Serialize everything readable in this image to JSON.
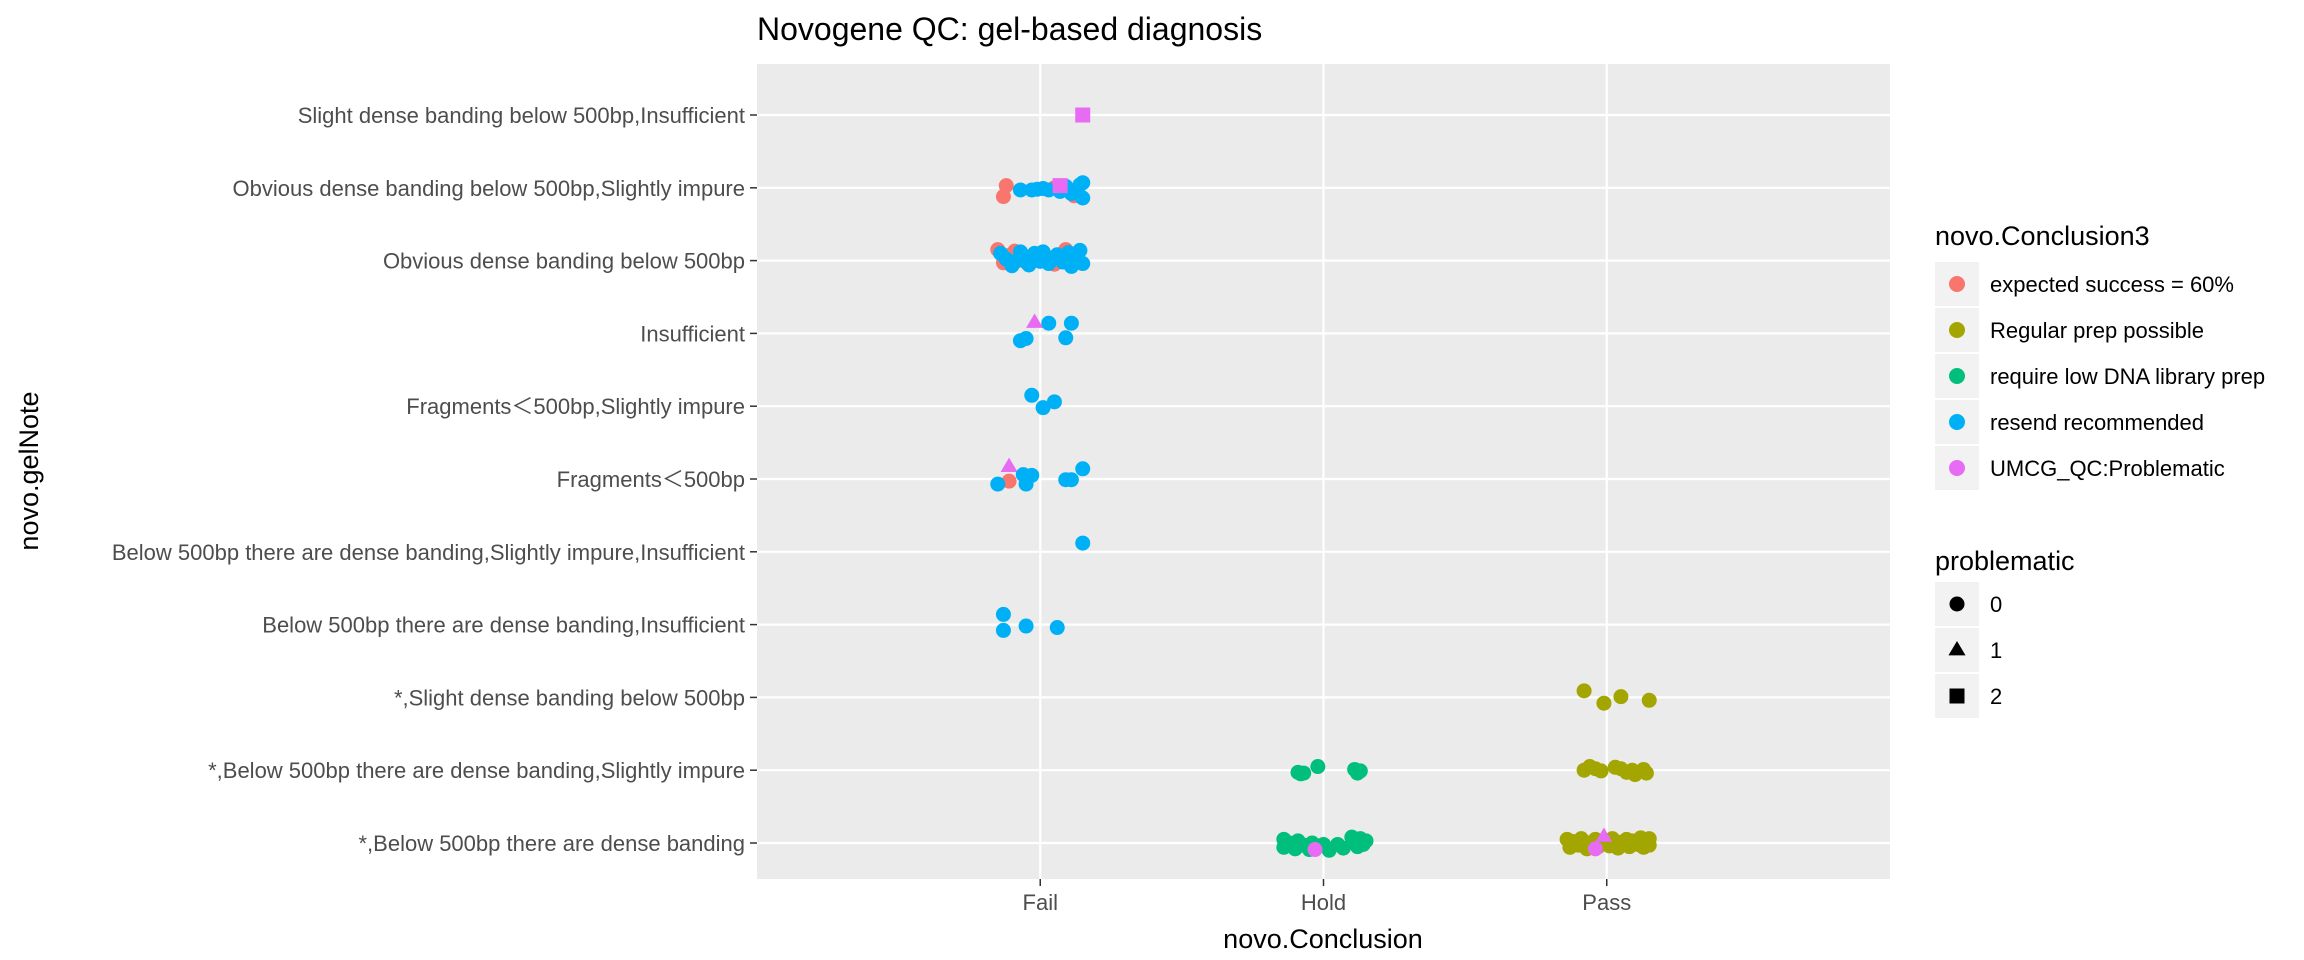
{
  "chart_data": {
    "type": "scatter",
    "title": "Novogene QC: gel-based diagnosis",
    "xlabel": "novo.Conclusion",
    "ylabel": "novo.gelNote",
    "x_categories": [
      "Fail",
      "Hold",
      "Pass"
    ],
    "y_categories": [
      "*,Below 500bp there are dense banding",
      "*,Below 500bp there are dense banding,Slightly impure",
      "*,Slight dense banding below 500bp",
      "Below 500bp there are dense banding,Insufficient",
      "Below 500bp there are dense banding,Slightly impure,Insufficient",
      "Fragments＜500bp",
      "Fragments＜500bp,Slightly impure",
      "Insufficient",
      "Obvious dense banding below 500bp",
      "Obvious dense banding below 500bp,Slightly impure",
      "Slight dense banding below 500bp,Insufficient"
    ],
    "grid": true,
    "color_legend": {
      "title": "novo.Conclusion3",
      "entries": [
        {
          "label": "expected success = 60%",
          "color": "#F8766D"
        },
        {
          "label": "Regular prep possible",
          "color": "#A3A500"
        },
        {
          "label": "require low DNA library prep",
          "color": "#00BF7D"
        },
        {
          "label": "resend recommended",
          "color": "#00B0F6"
        },
        {
          "label": "UMCG_QC:Problematic",
          "color": "#E76BF3"
        }
      ]
    },
    "shape_legend": {
      "title": "problematic",
      "entries": [
        {
          "label": "0",
          "shape": "circle"
        },
        {
          "label": "1",
          "shape": "triangle"
        },
        {
          "label": "2",
          "shape": "square"
        }
      ]
    },
    "points": [
      {
        "x": 0.15,
        "y": 10,
        "c": 4,
        "s": 2
      },
      {
        "x": -0.13,
        "y": 8.88,
        "c": 0,
        "s": 0
      },
      {
        "x": -0.12,
        "y": 9.03,
        "c": 0,
        "s": 0
      },
      {
        "x": 0.05,
        "y": 9.0,
        "c": 0,
        "s": 0
      },
      {
        "x": 0.12,
        "y": 8.89,
        "c": 0,
        "s": 0
      },
      {
        "x": -0.07,
        "y": 8.97,
        "c": 3,
        "s": 0
      },
      {
        "x": -0.03,
        "y": 8.97,
        "c": 3,
        "s": 0
      },
      {
        "x": -0.01,
        "y": 8.98,
        "c": 3,
        "s": 0
      },
      {
        "x": 0.01,
        "y": 8.99,
        "c": 3,
        "s": 0
      },
      {
        "x": 0.03,
        "y": 8.97,
        "c": 3,
        "s": 0
      },
      {
        "x": 0.07,
        "y": 8.95,
        "c": 3,
        "s": 0
      },
      {
        "x": 0.09,
        "y": 9.02,
        "c": 3,
        "s": 0
      },
      {
        "x": 0.11,
        "y": 8.92,
        "c": 3,
        "s": 0
      },
      {
        "x": 0.13,
        "y": 8.97,
        "c": 3,
        "s": 0
      },
      {
        "x": 0.14,
        "y": 9.04,
        "c": 3,
        "s": 0
      },
      {
        "x": 0.15,
        "y": 9.07,
        "c": 3,
        "s": 0
      },
      {
        "x": 0.15,
        "y": 8.86,
        "c": 3,
        "s": 0
      },
      {
        "x": 0.07,
        "y": 9.03,
        "c": 4,
        "s": 2
      },
      {
        "x": -0.15,
        "y": 8.15,
        "c": 0,
        "s": 0
      },
      {
        "x": -0.13,
        "y": 7.97,
        "c": 0,
        "s": 0
      },
      {
        "x": -0.11,
        "y": 8.07,
        "c": 0,
        "s": 0
      },
      {
        "x": -0.09,
        "y": 8.13,
        "c": 0,
        "s": 0
      },
      {
        "x": -0.05,
        "y": 7.98,
        "c": 0,
        "s": 0
      },
      {
        "x": 0.02,
        "y": 8.06,
        "c": 0,
        "s": 0
      },
      {
        "x": 0.04,
        "y": 8.0,
        "c": 0,
        "s": 0
      },
      {
        "x": 0.05,
        "y": 7.95,
        "c": 0,
        "s": 0
      },
      {
        "x": 0.09,
        "y": 8.15,
        "c": 0,
        "s": 0
      },
      {
        "x": 0.12,
        "y": 8.05,
        "c": 0,
        "s": 0
      },
      {
        "x": -0.14,
        "y": 8.1,
        "c": 3,
        "s": 0
      },
      {
        "x": -0.12,
        "y": 8.02,
        "c": 3,
        "s": 0
      },
      {
        "x": -0.1,
        "y": 7.93,
        "c": 3,
        "s": 0
      },
      {
        "x": -0.08,
        "y": 8.0,
        "c": 3,
        "s": 0
      },
      {
        "x": -0.07,
        "y": 8.12,
        "c": 3,
        "s": 0
      },
      {
        "x": -0.05,
        "y": 8.05,
        "c": 3,
        "s": 0
      },
      {
        "x": -0.04,
        "y": 7.94,
        "c": 3,
        "s": 0
      },
      {
        "x": -0.02,
        "y": 8.1,
        "c": 3,
        "s": 0
      },
      {
        "x": 0.0,
        "y": 7.99,
        "c": 3,
        "s": 0
      },
      {
        "x": 0.01,
        "y": 8.12,
        "c": 3,
        "s": 0
      },
      {
        "x": 0.03,
        "y": 7.96,
        "c": 3,
        "s": 0
      },
      {
        "x": 0.06,
        "y": 8.08,
        "c": 3,
        "s": 0
      },
      {
        "x": 0.08,
        "y": 7.98,
        "c": 3,
        "s": 0
      },
      {
        "x": 0.1,
        "y": 8.11,
        "c": 3,
        "s": 0
      },
      {
        "x": 0.11,
        "y": 7.92,
        "c": 3,
        "s": 0
      },
      {
        "x": 0.13,
        "y": 8.04,
        "c": 3,
        "s": 0
      },
      {
        "x": 0.14,
        "y": 8.14,
        "c": 3,
        "s": 0
      },
      {
        "x": 0.15,
        "y": 7.96,
        "c": 3,
        "s": 0
      },
      {
        "x": -0.02,
        "y": 7.15,
        "c": 4,
        "s": 1
      },
      {
        "x": -0.07,
        "y": 6.9,
        "c": 3,
        "s": 0
      },
      {
        "x": -0.05,
        "y": 6.93,
        "c": 3,
        "s": 0
      },
      {
        "x": 0.03,
        "y": 7.14,
        "c": 3,
        "s": 0
      },
      {
        "x": 0.09,
        "y": 6.94,
        "c": 3,
        "s": 0
      },
      {
        "x": 0.11,
        "y": 7.14,
        "c": 3,
        "s": 0
      },
      {
        "x": -0.03,
        "y": 6.15,
        "c": 3,
        "s": 0
      },
      {
        "x": 0.01,
        "y": 5.98,
        "c": 3,
        "s": 0
      },
      {
        "x": 0.05,
        "y": 6.06,
        "c": 3,
        "s": 0
      },
      {
        "x": -0.11,
        "y": 4.97,
        "c": 0,
        "s": 0
      },
      {
        "x": -0.11,
        "y": 5.17,
        "c": 4,
        "s": 1
      },
      {
        "x": -0.15,
        "y": 4.93,
        "c": 3,
        "s": 0
      },
      {
        "x": -0.06,
        "y": 5.06,
        "c": 3,
        "s": 0
      },
      {
        "x": -0.05,
        "y": 4.93,
        "c": 3,
        "s": 0
      },
      {
        "x": -0.03,
        "y": 5.05,
        "c": 3,
        "s": 0
      },
      {
        "x": 0.09,
        "y": 4.99,
        "c": 3,
        "s": 0
      },
      {
        "x": 0.11,
        "y": 4.99,
        "c": 3,
        "s": 0
      },
      {
        "x": 0.15,
        "y": 5.14,
        "c": 3,
        "s": 0
      },
      {
        "x": 0.15,
        "y": 4.12,
        "c": 3,
        "s": 0
      },
      {
        "x": -0.13,
        "y": 3.14,
        "c": 3,
        "s": 0
      },
      {
        "x": -0.13,
        "y": 2.92,
        "c": 3,
        "s": 0
      },
      {
        "x": -0.05,
        "y": 2.98,
        "c": 3,
        "s": 0
      },
      {
        "x": 0.06,
        "y": 2.96,
        "c": 3,
        "s": 0
      },
      {
        "x": 1.92,
        "y": 2.09,
        "c": 1,
        "s": 0
      },
      {
        "x": 1.99,
        "y": 1.92,
        "c": 1,
        "s": 0
      },
      {
        "x": 2.05,
        "y": 2.01,
        "c": 1,
        "s": 0
      },
      {
        "x": 2.15,
        "y": 1.96,
        "c": 1,
        "s": 0
      },
      {
        "x": 0.91,
        "y": 0.97,
        "c": 2,
        "s": 0
      },
      {
        "x": 0.92,
        "y": 0.95,
        "c": 2,
        "s": 0
      },
      {
        "x": 0.93,
        "y": 0.96,
        "c": 2,
        "s": 0
      },
      {
        "x": 0.98,
        "y": 1.05,
        "c": 2,
        "s": 0
      },
      {
        "x": 1.11,
        "y": 1.01,
        "c": 2,
        "s": 0
      },
      {
        "x": 1.12,
        "y": 0.96,
        "c": 2,
        "s": 0
      },
      {
        "x": 1.13,
        "y": 0.99,
        "c": 2,
        "s": 0
      },
      {
        "x": 1.92,
        "y": 1.0,
        "c": 1,
        "s": 0
      },
      {
        "x": 1.94,
        "y": 1.05,
        "c": 1,
        "s": 0
      },
      {
        "x": 1.96,
        "y": 1.02,
        "c": 1,
        "s": 0
      },
      {
        "x": 1.98,
        "y": 0.99,
        "c": 1,
        "s": 0
      },
      {
        "x": 2.03,
        "y": 1.04,
        "c": 1,
        "s": 0
      },
      {
        "x": 2.05,
        "y": 1.02,
        "c": 1,
        "s": 0
      },
      {
        "x": 2.07,
        "y": 0.97,
        "c": 1,
        "s": 0
      },
      {
        "x": 2.09,
        "y": 1.0,
        "c": 1,
        "s": 0
      },
      {
        "x": 2.1,
        "y": 0.94,
        "c": 1,
        "s": 0
      },
      {
        "x": 2.13,
        "y": 1.01,
        "c": 1,
        "s": 0
      },
      {
        "x": 2.14,
        "y": 0.96,
        "c": 1,
        "s": 0
      },
      {
        "x": 0.86,
        "y": 0.05,
        "c": 2,
        "s": 0
      },
      {
        "x": 0.86,
        "y": -0.06,
        "c": 2,
        "s": 0
      },
      {
        "x": 0.88,
        "y": 0.0,
        "c": 2,
        "s": 0
      },
      {
        "x": 0.9,
        "y": -0.08,
        "c": 2,
        "s": 0
      },
      {
        "x": 0.91,
        "y": 0.03,
        "c": 2,
        "s": 0
      },
      {
        "x": 0.93,
        "y": -0.03,
        "c": 2,
        "s": 0
      },
      {
        "x": 0.95,
        "y": -0.09,
        "c": 2,
        "s": 0
      },
      {
        "x": 0.96,
        "y": 0.0,
        "c": 2,
        "s": 0
      },
      {
        "x": 0.98,
        "y": -0.04,
        "c": 2,
        "s": 0
      },
      {
        "x": 1.0,
        "y": -0.02,
        "c": 2,
        "s": 0
      },
      {
        "x": 1.02,
        "y": -0.1,
        "c": 2,
        "s": 0
      },
      {
        "x": 1.05,
        "y": -0.02,
        "c": 2,
        "s": 0
      },
      {
        "x": 1.07,
        "y": -0.07,
        "c": 2,
        "s": 0
      },
      {
        "x": 1.1,
        "y": 0.08,
        "c": 2,
        "s": 0
      },
      {
        "x": 1.11,
        "y": 0.0,
        "c": 2,
        "s": 0
      },
      {
        "x": 1.12,
        "y": -0.05,
        "c": 2,
        "s": 0
      },
      {
        "x": 1.13,
        "y": 0.06,
        "c": 2,
        "s": 0
      },
      {
        "x": 1.14,
        "y": -0.02,
        "c": 2,
        "s": 0
      },
      {
        "x": 1.15,
        "y": 0.03,
        "c": 2,
        "s": 0
      },
      {
        "x": 0.97,
        "y": -0.09,
        "c": 4,
        "s": 0
      },
      {
        "x": 1.86,
        "y": 0.05,
        "c": 1,
        "s": 0
      },
      {
        "x": 1.87,
        "y": -0.06,
        "c": 1,
        "s": 0
      },
      {
        "x": 1.88,
        "y": 0.02,
        "c": 1,
        "s": 0
      },
      {
        "x": 1.9,
        "y": -0.03,
        "c": 1,
        "s": 0
      },
      {
        "x": 1.91,
        "y": 0.06,
        "c": 1,
        "s": 0
      },
      {
        "x": 1.93,
        "y": -0.08,
        "c": 1,
        "s": 0
      },
      {
        "x": 1.94,
        "y": 0.0,
        "c": 1,
        "s": 0
      },
      {
        "x": 1.96,
        "y": 0.05,
        "c": 1,
        "s": 0
      },
      {
        "x": 1.97,
        "y": -0.05,
        "c": 1,
        "s": 0
      },
      {
        "x": 1.99,
        "y": 0.02,
        "c": 1,
        "s": 0
      },
      {
        "x": 2.01,
        "y": -0.04,
        "c": 1,
        "s": 0
      },
      {
        "x": 2.02,
        "y": 0.06,
        "c": 1,
        "s": 0
      },
      {
        "x": 2.04,
        "y": -0.07,
        "c": 1,
        "s": 0
      },
      {
        "x": 2.05,
        "y": 0.01,
        "c": 1,
        "s": 0
      },
      {
        "x": 2.07,
        "y": 0.05,
        "c": 1,
        "s": 0
      },
      {
        "x": 2.08,
        "y": -0.05,
        "c": 1,
        "s": 0
      },
      {
        "x": 2.09,
        "y": 0.03,
        "c": 1,
        "s": 0
      },
      {
        "x": 2.11,
        "y": -0.02,
        "c": 1,
        "s": 0
      },
      {
        "x": 2.12,
        "y": 0.07,
        "c": 1,
        "s": 0
      },
      {
        "x": 2.13,
        "y": -0.06,
        "c": 1,
        "s": 0
      },
      {
        "x": 2.14,
        "y": 0.02,
        "c": 1,
        "s": 0
      },
      {
        "x": 2.15,
        "y": -0.03,
        "c": 1,
        "s": 0
      },
      {
        "x": 2.15,
        "y": 0.06,
        "c": 1,
        "s": 0
      },
      {
        "x": 1.96,
        "y": -0.08,
        "c": 4,
        "s": 0
      },
      {
        "x": 1.99,
        "y": 0.09,
        "c": 4,
        "s": 1
      }
    ]
  }
}
